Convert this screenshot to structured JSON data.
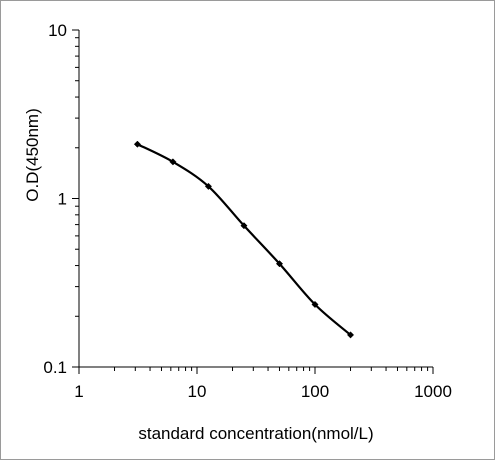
{
  "chart_data": {
    "type": "line",
    "title": "",
    "xlabel": "standard concentration(nmol/L)",
    "ylabel": "O.D(450nm)",
    "xscale": "log",
    "yscale": "log",
    "xlim": [
      1,
      1000
    ],
    "ylim": [
      0.1,
      10
    ],
    "xticks": [
      1,
      10,
      100,
      1000
    ],
    "xtick_labels": [
      "1",
      "10",
      "100",
      "1000"
    ],
    "yticks": [
      0.1,
      1,
      10
    ],
    "ytick_labels": [
      "0.1",
      "1",
      "10"
    ],
    "grid": false,
    "legend": "none",
    "series": [
      {
        "x": [
          3.125,
          6.25,
          12.5,
          25,
          50,
          100,
          200
        ],
        "y": [
          2.1,
          1.65,
          1.18,
          0.69,
          0.41,
          0.235,
          0.155
        ],
        "color": "#000000",
        "marker": "diamond"
      }
    ]
  }
}
